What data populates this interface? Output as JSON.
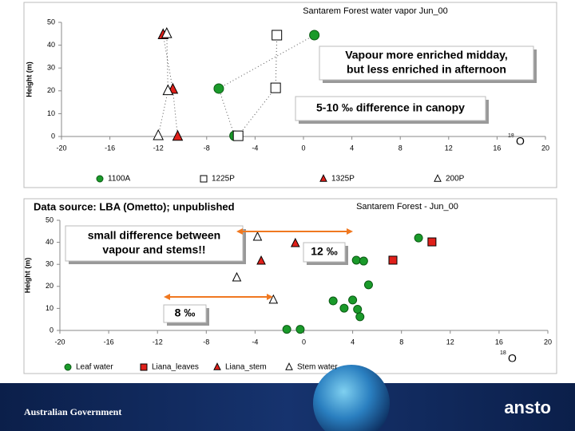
{
  "chart_data": [
    {
      "type": "scatter",
      "title": "Santarem Forest water vapor  Jun_00",
      "ylabel": "Height (m)",
      "xlabel_sup": "18",
      "xlabel": "O",
      "xlim": [
        -20,
        20
      ],
      "xticks": [
        -20,
        -16,
        -12,
        -8,
        -4,
        0,
        4,
        8,
        12,
        16,
        20
      ],
      "ylim": [
        0,
        50
      ],
      "yticks": [
        0,
        10,
        20,
        30,
        40,
        50
      ],
      "connect": true,
      "series": [
        {
          "name": "1100A",
          "color": "#1a9a2a",
          "marker": "circle",
          "filled": true,
          "x": [
            0.9,
            -7.0,
            -5.7
          ],
          "values": [
            44.4,
            21,
            0.3
          ]
        },
        {
          "name": "1225P",
          "color": "#000000",
          "marker": "square",
          "filled": false,
          "x": [
            -2.2,
            -2.3,
            -5.4
          ],
          "values": [
            44.4,
            21.3,
            0.3
          ]
        },
        {
          "name": "1325P",
          "color": "#e0201a",
          "marker": "triangle",
          "filled": true,
          "x": [
            -11.6,
            -10.8,
            -10.4
          ],
          "values": [
            44.5,
            20.6,
            0
          ]
        },
        {
          "name": "200P",
          "color": "#000000",
          "marker": "triangle",
          "filled": false,
          "x": [
            -11.3,
            -11.2,
            -12
          ],
          "values": [
            45,
            20,
            0.3
          ]
        }
      ],
      "annotations": [
        [
          "Vapour more enriched midday,",
          "but less enriched in afternoon"
        ],
        [
          "5-10 ‰ difference in canopy"
        ]
      ]
    },
    {
      "type": "scatter",
      "title": "Santarem Forest - Jun_00",
      "ylabel": "Height (m)",
      "xlabel_sup": "18",
      "xlabel": "O",
      "source": "Data source: LBA (Ometto); unpublished",
      "xlim": [
        -20,
        20
      ],
      "xticks": [
        -20,
        -16,
        -12,
        -8,
        -4,
        0,
        4,
        8,
        12,
        16,
        20
      ],
      "ylim": [
        0,
        50
      ],
      "yticks": [
        0,
        10,
        20,
        30,
        40,
        50
      ],
      "connect": false,
      "series": [
        {
          "name": "Leaf water",
          "color": "#1a9a2a",
          "marker": "circle",
          "filled": true,
          "x": [
            -1.4,
            -0.3,
            2.4,
            3.3,
            4.0,
            4.4,
            4.6,
            5.3,
            4.3,
            4.9,
            9.4
          ],
          "values": [
            0.5,
            0.5,
            13.4,
            10.1,
            13.8,
            9.6,
            6.2,
            20.7,
            31.9,
            31.5,
            42
          ]
        },
        {
          "name": "Liana_leaves",
          "color": "#e0201a",
          "marker": "square",
          "filled": true,
          "x": [
            10.5,
            7.3
          ],
          "values": [
            40.2,
            31.9
          ]
        },
        {
          "name": "Liana_stem",
          "color": "#e0201a",
          "marker": "triangle",
          "filled": true,
          "x": [
            -0.7,
            -3.5
          ],
          "values": [
            39.5,
            31.5
          ]
        },
        {
          "name": "Stem water",
          "color": "#000000",
          "marker": "triangle",
          "filled": false,
          "x": [
            -3.8,
            -5.5,
            -2.5
          ],
          "values": [
            42.4,
            23.9,
            13.8
          ]
        }
      ],
      "annotations": [
        [
          "small difference between",
          "vapour and stems!!"
        ],
        [
          "12 ‰"
        ],
        [
          "8 ‰"
        ]
      ]
    }
  ],
  "footer": {
    "left": "Australian Government",
    "right": "ansto"
  }
}
